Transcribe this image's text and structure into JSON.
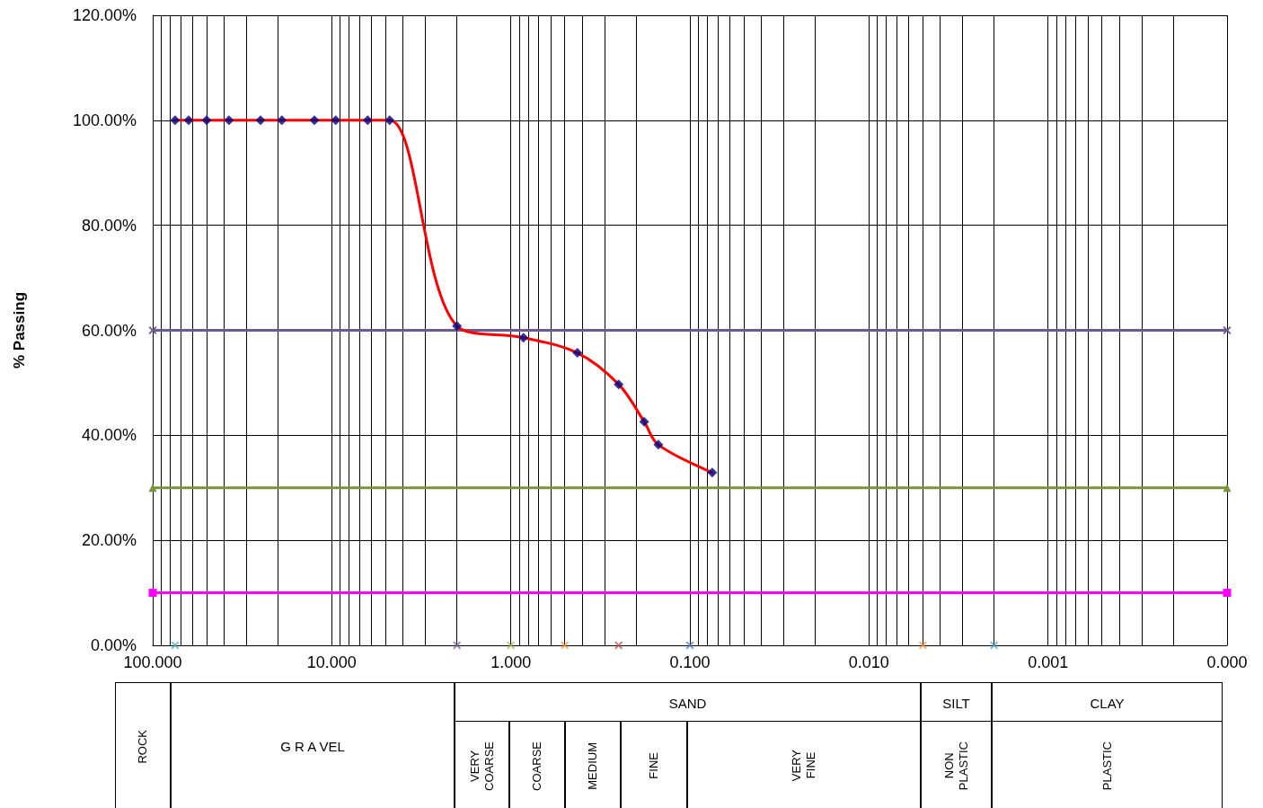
{
  "chart_data": {
    "type": "line",
    "ylabel": "% Passing",
    "xlim": [
      100,
      0.0001
    ],
    "xticks": [
      {
        "value": 100,
        "label": "100.000"
      },
      {
        "value": 10,
        "label": "10.000"
      },
      {
        "value": 1,
        "label": "1.000"
      },
      {
        "value": 0.1,
        "label": "0.100"
      },
      {
        "value": 0.01,
        "label": "0.010"
      },
      {
        "value": 0.001,
        "label": "0.001"
      },
      {
        "value": 0.0001,
        "label": "0.000"
      }
    ],
    "log": "x",
    "ylim": [
      0,
      120
    ],
    "yticks": [
      {
        "value": 0,
        "label": "0.00%"
      },
      {
        "value": 20,
        "label": "20.00%"
      },
      {
        "value": 40,
        "label": "40.00%"
      },
      {
        "value": 60,
        "label": "60.00%"
      },
      {
        "value": 80,
        "label": "80.00%"
      },
      {
        "value": 100,
        "label": "100.00%"
      },
      {
        "value": 120,
        "label": "120.00%"
      }
    ],
    "grid": true,
    "series": [
      {
        "type": "line",
        "color": "#6b5b8e",
        "marker": "cross",
        "x": [
          100,
          0.0001
        ],
        "values": [
          60,
          60
        ]
      },
      {
        "type": "line",
        "color": "#77933c",
        "marker": "triangle",
        "x": [
          100,
          0.0001
        ],
        "values": [
          30,
          30
        ]
      },
      {
        "type": "line",
        "color": "#ff00ff",
        "marker": "square",
        "x": [
          100,
          0.0001
        ],
        "values": [
          10,
          10
        ]
      },
      {
        "type": "line",
        "color": "#ff0000",
        "marker": "none",
        "x": [
          75,
          63,
          50,
          37.5,
          25,
          19,
          12.5,
          9.5,
          6.3,
          4.75,
          2,
          0.85,
          0.425,
          0.25,
          0.18,
          0.15,
          0.075
        ],
        "values": [
          100,
          100,
          100,
          100,
          100,
          100,
          100,
          100,
          100,
          100,
          60.8,
          58.6,
          55.7,
          49.7,
          42.6,
          38.2,
          32.9
        ]
      },
      {
        "type": "scatter",
        "color": "#000080",
        "marker": "diamond",
        "x": [
          75,
          63,
          50,
          37.5,
          25,
          19,
          12.5,
          9.5,
          6.3,
          4.75,
          2,
          0.85,
          0.425,
          0.25,
          0.18,
          0.15,
          0.075
        ],
        "values": [
          100,
          100,
          100,
          100,
          100,
          100,
          100,
          100,
          100,
          100,
          60.8,
          58.6,
          55.7,
          49.7,
          42.6,
          38.2,
          32.9
        ]
      },
      {
        "type": "scatter",
        "marker": "cross",
        "x": [
          75,
          2,
          1,
          0.5,
          0.25,
          0.1,
          0.005,
          0.002
        ],
        "values": [
          0,
          0,
          0,
          0,
          0,
          0,
          0,
          0
        ],
        "colors": [
          "#4bacc6",
          "#8064a2",
          "#9bbb59",
          "#f79646",
          "#c0504d",
          "#4f81bd",
          "#f79646",
          "#4bacc6"
        ]
      }
    ],
    "annotations": [
      "ROCK",
      "G R A VEL",
      "SAND",
      "VERY COARSE",
      "COARSE",
      "MEDIUM",
      "FINE",
      "VERY FINE",
      "SILT",
      "NON PLASTIC",
      "CLAY",
      "PLASTIC"
    ]
  }
}
